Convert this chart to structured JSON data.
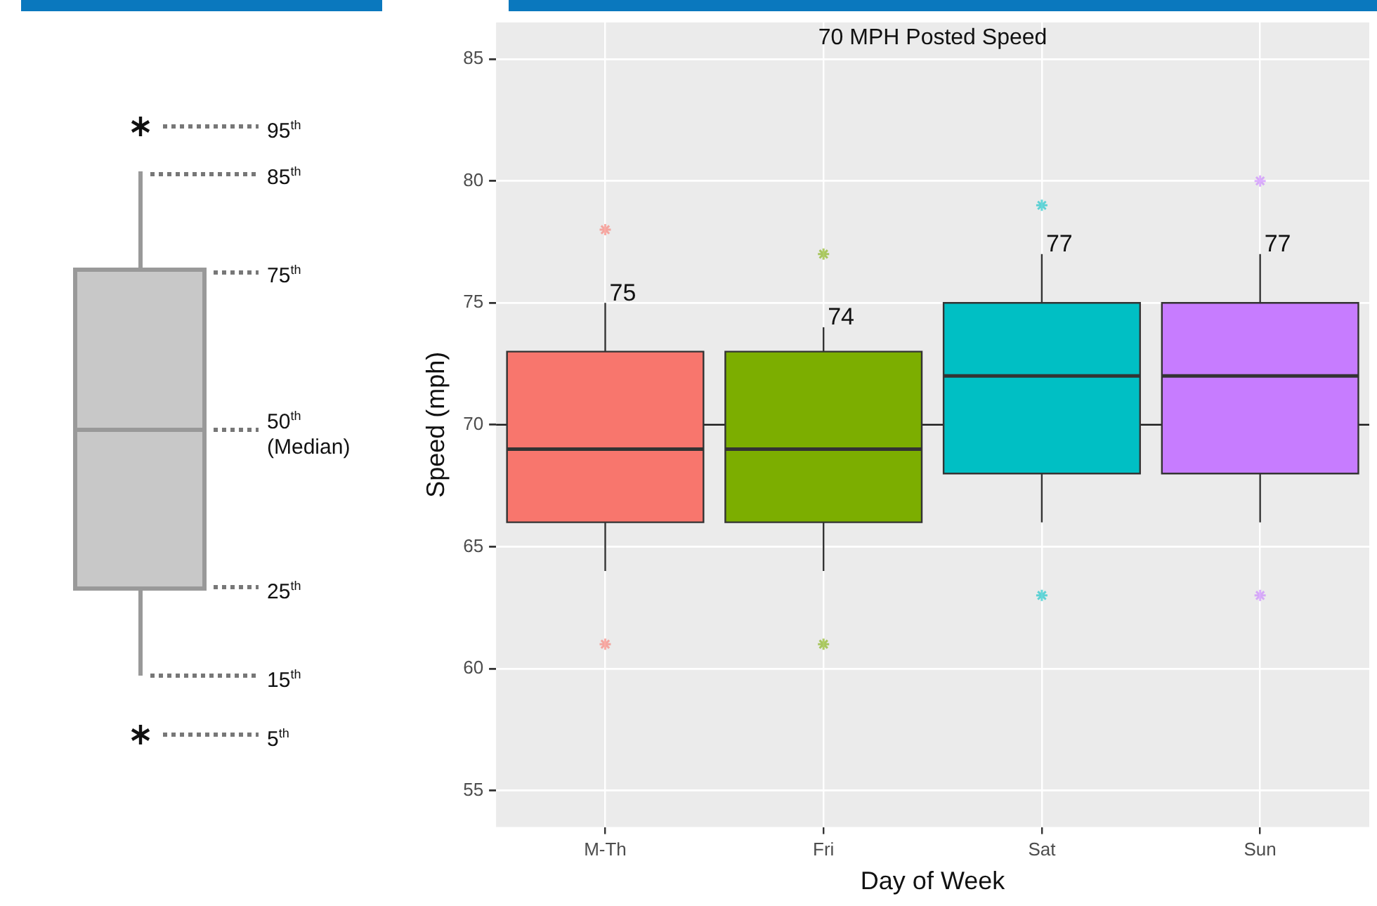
{
  "chart_data": {
    "type": "box",
    "title": "70 MPH Posted Speed",
    "xlabel": "Day of Week",
    "ylabel": "Speed (mph)",
    "categories": [
      "M-Th",
      "Fri",
      "Sat",
      "Sun"
    ],
    "colors": [
      "#f8766d",
      "#7cae00",
      "#00bfc4",
      "#c77cff"
    ],
    "boxes": [
      {
        "low": 64,
        "q1": 66,
        "median": 69,
        "q3": 73,
        "high": 75,
        "outliers": [
          61,
          78
        ]
      },
      {
        "low": 64,
        "q1": 66,
        "median": 69,
        "q3": 73,
        "high": 74,
        "outliers": [
          61,
          77
        ]
      },
      {
        "low": 66,
        "q1": 68,
        "median": 72,
        "q3": 75,
        "high": 77,
        "outliers": [
          63,
          79
        ]
      },
      {
        "low": 66,
        "q1": 68,
        "median": 72,
        "q3": 75,
        "high": 77,
        "outliers": [
          63,
          80
        ]
      }
    ],
    "ylim": [
      53.5,
      86.5
    ],
    "yticks": [
      55,
      60,
      65,
      70,
      75,
      80,
      85
    ],
    "grid": true,
    "marker": "star",
    "ref_lines": [
      {
        "axis": "y",
        "value": 70,
        "color": "#1a1a1a"
      }
    ],
    "annotations": [
      "95$^{th}$",
      "85$^{th}$",
      "75$^{th}$",
      "50$^{th}$ (Median)",
      "25$^{th}$",
      "15$^{th}$",
      "5$^{th}$",
      {
        "text": "75",
        "x": "M-Th",
        "y": 75
      },
      {
        "text": "74",
        "x": "Fri",
        "y": 74
      },
      {
        "text": "77",
        "x": "Sat",
        "y": 77
      },
      {
        "text": "77",
        "x": "Sun",
        "y": 77
      }
    ]
  }
}
